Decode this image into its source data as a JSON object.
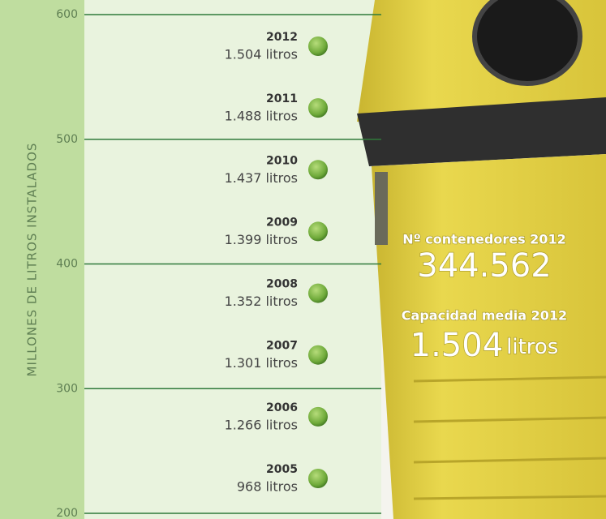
{
  "chart_data": {
    "type": "timeline",
    "y_label": "MILLONES DE LITROS INSTALADOS",
    "ylim": [
      200,
      600
    ],
    "yticks": [
      200,
      300,
      400,
      500,
      600
    ],
    "categories": [
      "2012",
      "2011",
      "2010",
      "2009",
      "2008",
      "2007",
      "2006",
      "2005"
    ],
    "values": [
      1504,
      1488,
      1437,
      1399,
      1352,
      1301,
      1266,
      968
    ],
    "value_labels": [
      "1.504 litros",
      "1.488 litros",
      "1.437 litros",
      "1.399 litros",
      "1.352 litros",
      "1.301 litros",
      "1.266 litros",
      "968 litros"
    ],
    "color": "#6faa3a",
    "grid": true,
    "highlights": [
      {
        "label": "Nº contenedores 2012",
        "value": "344.562"
      },
      {
        "label": "Capacidad media 2012",
        "value": "1.504",
        "unit": "litros"
      }
    ]
  }
}
